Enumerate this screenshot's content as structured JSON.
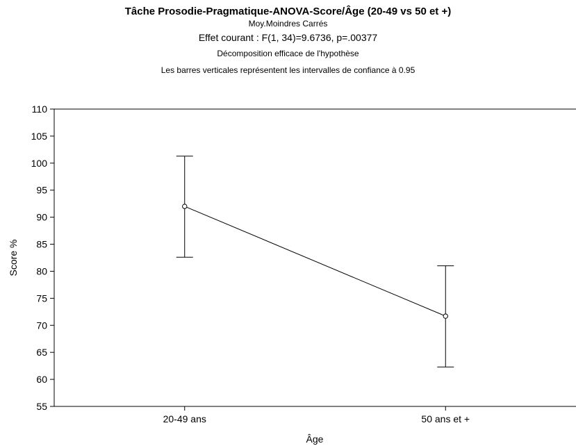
{
  "chart_data": {
    "type": "line",
    "title": "Tâche Prosodie-Pragmatique-ANOVA-Score/Âge (20-49 vs 50 et +)",
    "subtitles": [
      "Moy.Moindres Carrés",
      "Effet courant : F(1, 34)=9.6736, p=.00377",
      "Décomposition efficace de l'hypothèse",
      "Les barres verticales représentent les intervalles de confiance à 0.95"
    ],
    "xlabel": "Âge",
    "ylabel": "Score %",
    "categories": [
      "20-49 ans",
      "50 ans et +"
    ],
    "series": [
      {
        "values": [
          92.0,
          71.7
        ],
        "ci_low": [
          82.6,
          62.3
        ],
        "ci_high": [
          101.3,
          81.0
        ]
      }
    ],
    "ylim": [
      55,
      110
    ],
    "yticks": [
      55,
      60,
      65,
      70,
      75,
      80,
      85,
      90,
      95,
      100,
      105,
      110
    ],
    "grid": false,
    "colors": {
      "line": "#000000",
      "marker_fill": "#ffffff"
    }
  }
}
